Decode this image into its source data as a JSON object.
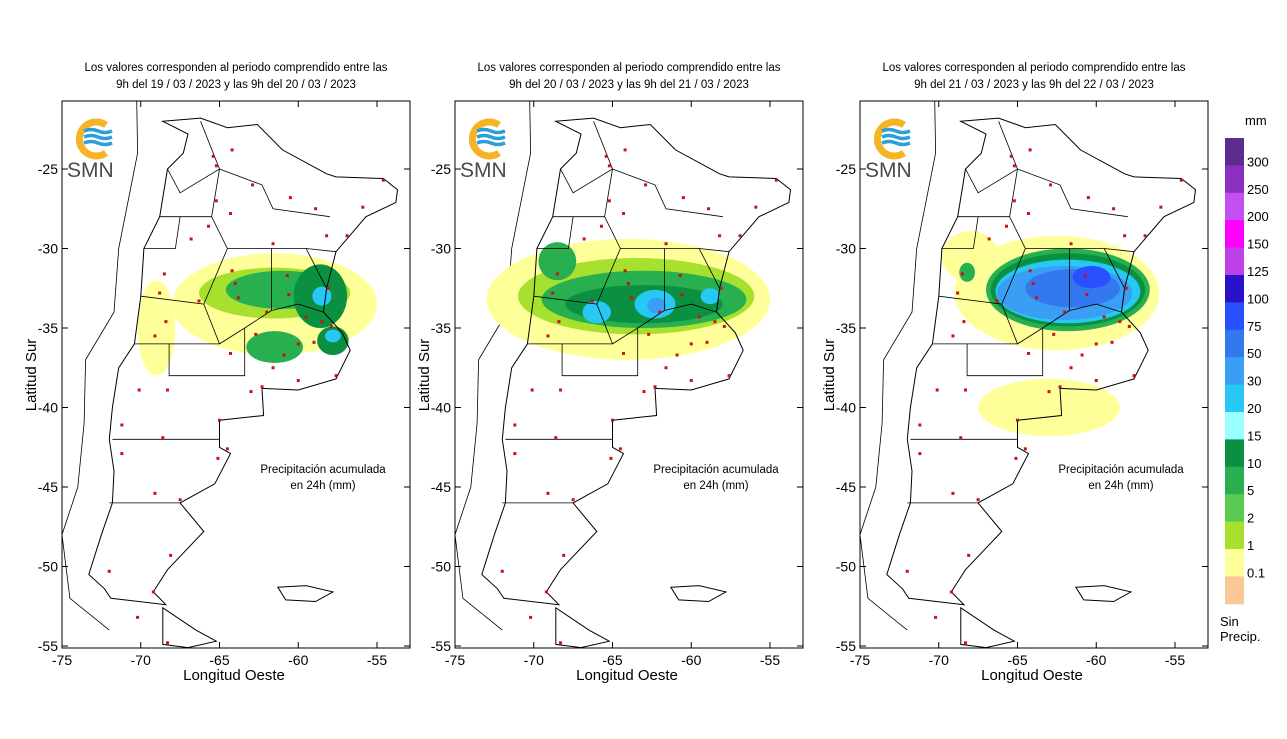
{
  "panels": [
    {
      "title_line1": "Los valores corresponden al periodo comprendido entre las",
      "title_line2": "9h del 19 / 03 / 2023  y las 9h del 20 / 03 / 2023",
      "precip_areas": [
        {
          "lon": -61.5,
          "lat": -33.5,
          "rx": 6.5,
          "ry": 3.2,
          "mm": 0.1
        },
        {
          "lon": -69.0,
          "lat": -35.0,
          "rx": 1.2,
          "ry": 3.0,
          "mm": 0.1
        },
        {
          "lon": -61.5,
          "lat": -32.8,
          "rx": 4.8,
          "ry": 1.6,
          "mm": 1
        },
        {
          "lon": -61.0,
          "lat": -32.6,
          "rx": 3.6,
          "ry": 1.2,
          "mm": 5
        },
        {
          "lon": -61.5,
          "lat": -36.2,
          "rx": 1.8,
          "ry": 1.0,
          "mm": 5
        },
        {
          "lon": -58.6,
          "lat": -33.0,
          "rx": 1.7,
          "ry": 2.0,
          "mm": 10
        },
        {
          "lon": -58.5,
          "lat": -33.0,
          "rx": 0.6,
          "ry": 0.6,
          "mm": 20
        },
        {
          "lon": -57.8,
          "lat": -35.8,
          "rx": 1.0,
          "ry": 0.9,
          "mm": 10
        },
        {
          "lon": -57.8,
          "lat": -35.5,
          "rx": 0.5,
          "ry": 0.4,
          "mm": 20
        }
      ]
    },
    {
      "title_line1": "Los valores corresponden al periodo comprendido entre las",
      "title_line2": "9h del 20 / 03 / 2023  y las 9h del 21 / 03 / 2023",
      "precip_areas": [
        {
          "lon": -64.0,
          "lat": -33.2,
          "rx": 9.0,
          "ry": 3.8,
          "mm": 0.1
        },
        {
          "lon": -63.5,
          "lat": -33.0,
          "rx": 7.5,
          "ry": 2.4,
          "mm": 1
        },
        {
          "lon": -63.0,
          "lat": -33.2,
          "rx": 6.5,
          "ry": 1.8,
          "mm": 5
        },
        {
          "lon": -68.5,
          "lat": -30.8,
          "rx": 1.2,
          "ry": 1.2,
          "mm": 5
        },
        {
          "lon": -63.0,
          "lat": -33.5,
          "rx": 5.0,
          "ry": 1.2,
          "mm": 10
        },
        {
          "lon": -66.0,
          "lat": -34.0,
          "rx": 0.9,
          "ry": 0.7,
          "mm": 20
        },
        {
          "lon": -62.3,
          "lat": -33.5,
          "rx": 1.3,
          "ry": 0.9,
          "mm": 20
        },
        {
          "lon": -62.2,
          "lat": -33.6,
          "rx": 0.6,
          "ry": 0.5,
          "mm": 30
        },
        {
          "lon": -58.8,
          "lat": -33.0,
          "rx": 0.6,
          "ry": 0.5,
          "mm": 20
        }
      ]
    },
    {
      "title_line1": "Los valores corresponden al periodo comprendido entre las",
      "title_line2": "9h del 21 / 03 / 2023  y las 9h del 22 / 03 / 2023",
      "precip_areas": [
        {
          "lon": -62.5,
          "lat": -32.8,
          "rx": 6.5,
          "ry": 3.6,
          "mm": 0.1
        },
        {
          "lon": -68.0,
          "lat": -30.5,
          "rx": 1.8,
          "ry": 1.6,
          "mm": 0.1
        },
        {
          "lon": -63.0,
          "lat": -40.0,
          "rx": 4.5,
          "ry": 1.8,
          "mm": 0.1
        },
        {
          "lon": -61.8,
          "lat": -32.6,
          "rx": 5.2,
          "ry": 2.6,
          "mm": 5
        },
        {
          "lon": -61.8,
          "lat": -32.6,
          "rx": 4.9,
          "ry": 2.3,
          "mm": 10
        },
        {
          "lon": -61.8,
          "lat": -32.7,
          "rx": 4.6,
          "ry": 2.0,
          "mm": 20
        },
        {
          "lon": -62.0,
          "lat": -32.8,
          "rx": 4.3,
          "ry": 1.7,
          "mm": 30
        },
        {
          "lon": -61.5,
          "lat": -32.5,
          "rx": 3.0,
          "ry": 1.2,
          "mm": 50
        },
        {
          "lon": -60.3,
          "lat": -31.8,
          "rx": 1.2,
          "ry": 0.7,
          "mm": 75
        },
        {
          "lon": -68.2,
          "lat": -31.5,
          "rx": 0.5,
          "ry": 0.6,
          "mm": 5
        }
      ]
    }
  ],
  "logo_text": "SMN",
  "note_line1": "Precipitación acumulada",
  "note_line2": "en 24h (mm)",
  "x_axis_label": "Longitud Oeste",
  "y_axis_label": "Latitud Sur",
  "x_ticks": [
    "-75",
    "-70",
    "-65",
    "-60",
    "-55"
  ],
  "y_ticks": [
    "-25",
    "-30",
    "-35",
    "-40",
    "-45",
    "-50",
    "-55"
  ],
  "legend": {
    "unit": "mm",
    "no_precip_line1": "Sin",
    "no_precip_line2": "Precip.",
    "labels": [
      "300",
      "250",
      "200",
      "150",
      "125",
      "100",
      "75",
      "50",
      "30",
      "20",
      "15",
      "10",
      "5",
      "2",
      "1",
      "0.1"
    ],
    "colors": [
      "#5b2d8e",
      "#8a2fc0",
      "#c44ff0",
      "#ff00ff",
      "#c040e8",
      "#2a10c8",
      "#2850ff",
      "#3478f0",
      "#3a9ef5",
      "#28c8f5",
      "#99ffff",
      "#0a9040",
      "#28b050",
      "#5acb50",
      "#a8e030",
      "#ffff99",
      "#fac896"
    ],
    "thresholds": [
      300,
      250,
      200,
      150,
      125,
      100,
      75,
      50,
      30,
      20,
      15,
      10,
      5,
      2,
      1,
      0.1,
      0
    ]
  },
  "colors": {
    "station": "#cc1111",
    "logo_orange": "#f5b325",
    "logo_blue": "#2a9fd8"
  },
  "stations": [
    [
      -65.2,
      -24.8
    ],
    [
      -65.4,
      -24.2
    ],
    [
      -64.2,
      -23.8
    ],
    [
      -65.2,
      -27.0
    ],
    [
      -64.3,
      -27.8
    ],
    [
      -62.9,
      -26.0
    ],
    [
      -60.5,
      -26.8
    ],
    [
      -58.9,
      -27.5
    ],
    [
      -55.9,
      -27.4
    ],
    [
      -54.6,
      -25.7
    ],
    [
      -56.9,
      -29.2
    ],
    [
      -58.2,
      -29.2
    ],
    [
      -61.6,
      -29.7
    ],
    [
      -65.7,
      -28.6
    ],
    [
      -66.8,
      -29.4
    ],
    [
      -68.5,
      -31.6
    ],
    [
      -66.3,
      -33.3
    ],
    [
      -64.2,
      -31.4
    ],
    [
      -63.8,
      -33.1
    ],
    [
      -64.0,
      -32.2
    ],
    [
      -60.6,
      -32.9
    ],
    [
      -60.7,
      -31.7
    ],
    [
      -58.1,
      -32.5
    ],
    [
      -58.5,
      -34.6
    ],
    [
      -57.9,
      -34.9
    ],
    [
      -59.0,
      -35.9
    ],
    [
      -60.9,
      -36.7
    ],
    [
      -62.7,
      -35.4
    ],
    [
      -64.3,
      -36.6
    ],
    [
      -68.4,
      -34.6
    ],
    [
      -68.8,
      -32.8
    ],
    [
      -69.1,
      -35.5
    ],
    [
      -62.3,
      -38.7
    ],
    [
      -57.6,
      -38.0
    ],
    [
      -60.0,
      -38.3
    ],
    [
      -63.0,
      -39.0
    ],
    [
      -65.0,
      -40.8
    ],
    [
      -71.2,
      -41.1
    ],
    [
      -68.3,
      -38.9
    ],
    [
      -70.1,
      -38.9
    ],
    [
      -68.6,
      -41.9
    ],
    [
      -65.1,
      -43.2
    ],
    [
      -71.2,
      -42.9
    ],
    [
      -67.5,
      -45.8
    ],
    [
      -69.1,
      -45.4
    ],
    [
      -68.1,
      -49.3
    ],
    [
      -69.2,
      -51.6
    ],
    [
      -72.0,
      -50.3
    ],
    [
      -70.2,
      -53.2
    ],
    [
      -68.3,
      -54.8
    ],
    [
      -64.5,
      -42.6
    ],
    [
      -62.0,
      -34.0
    ],
    [
      -60.0,
      -36.0
    ],
    [
      -59.5,
      -34.3
    ],
    [
      -61.6,
      -37.5
    ]
  ]
}
